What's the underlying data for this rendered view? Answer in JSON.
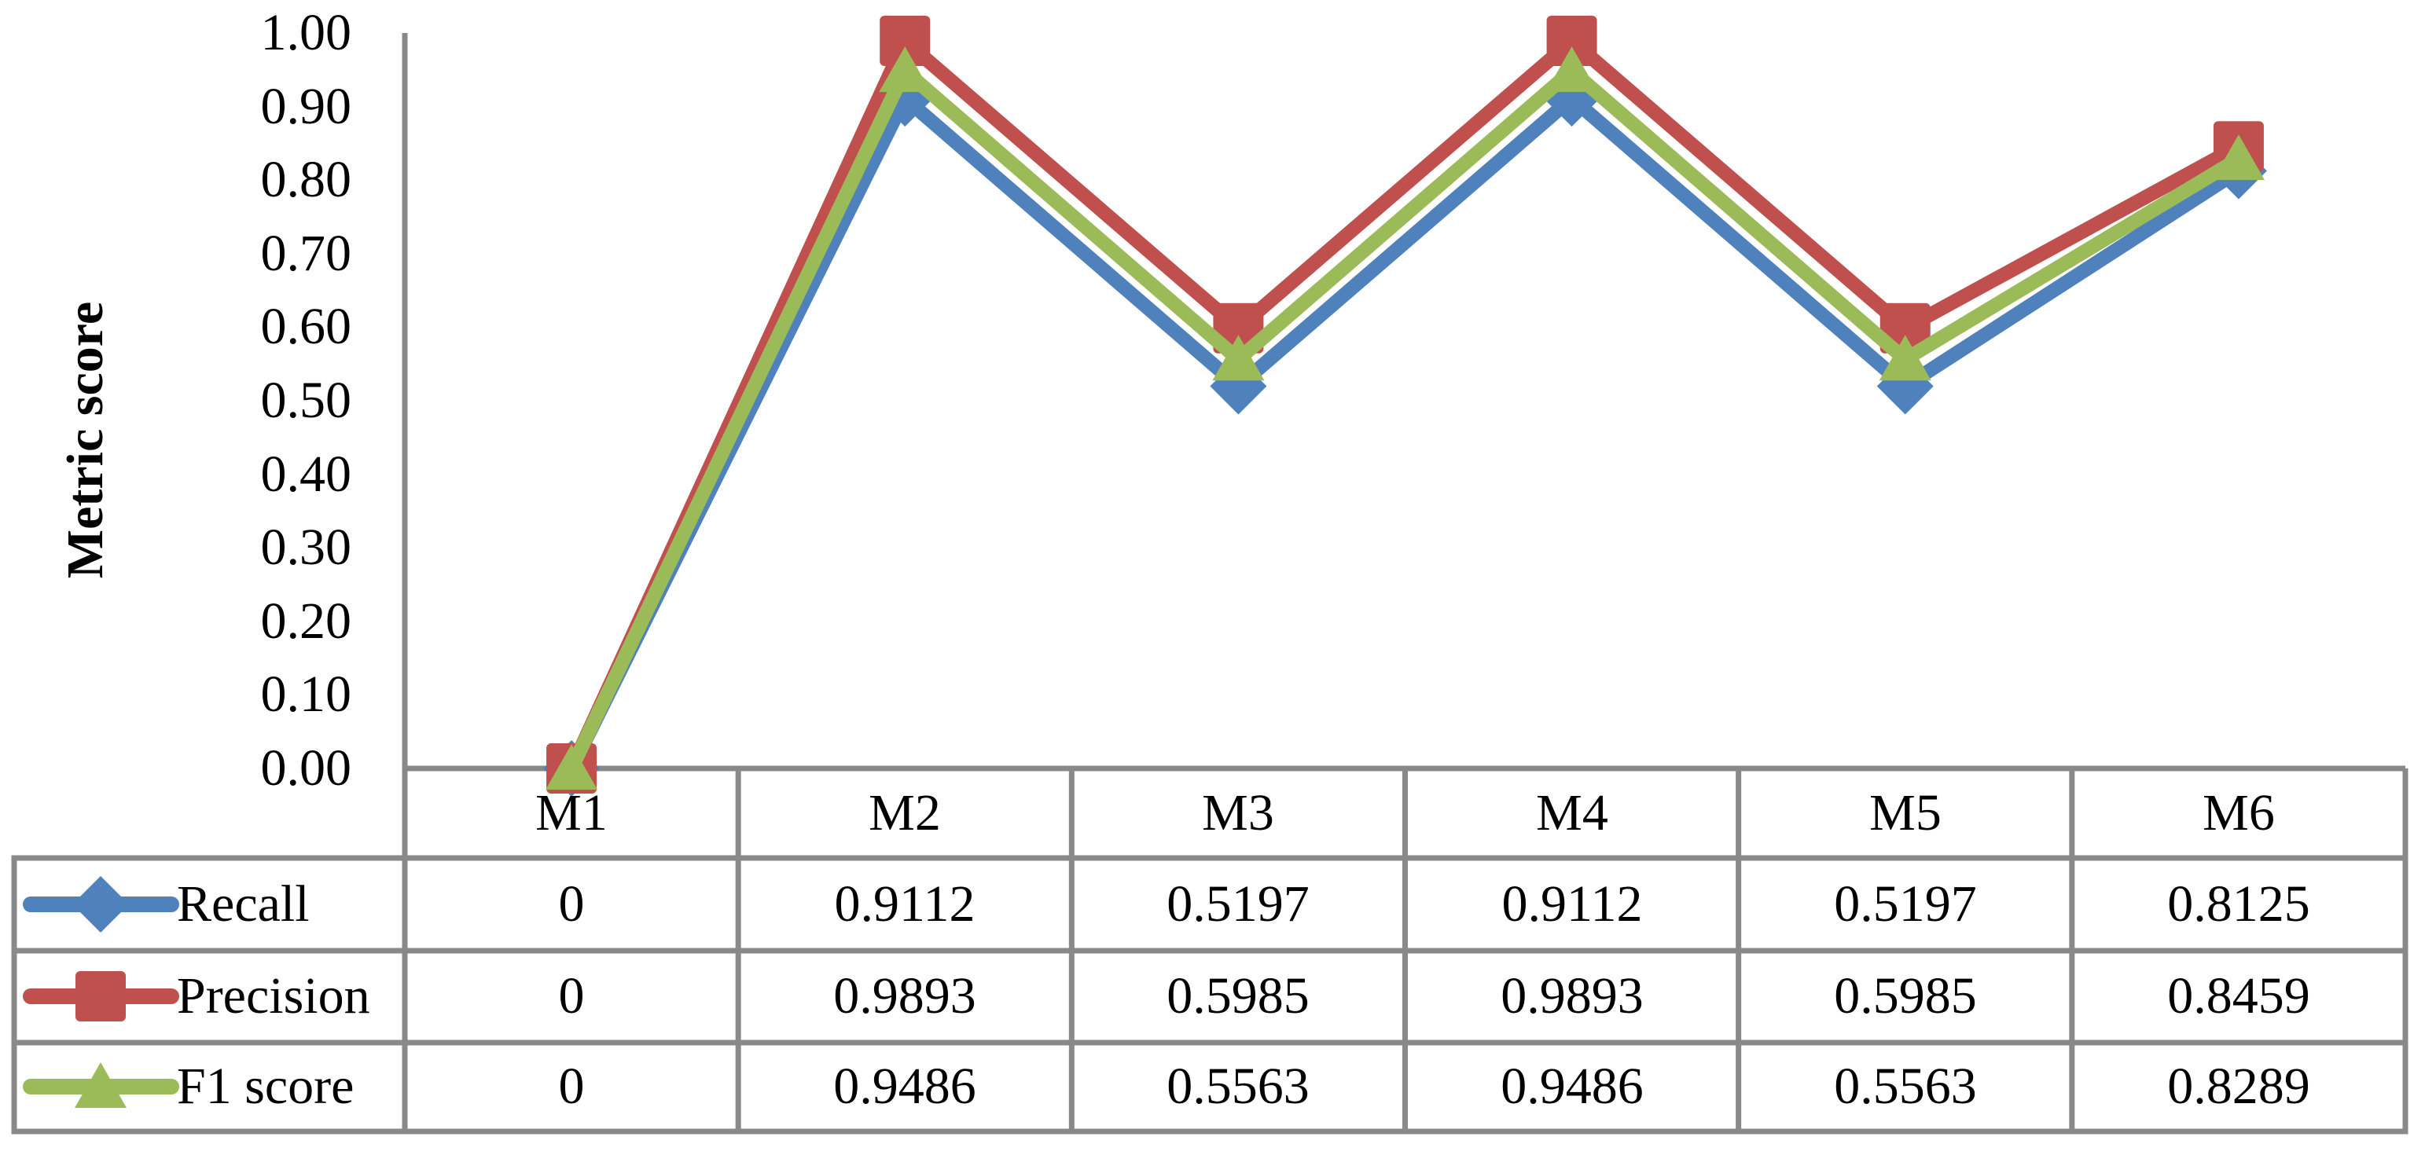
{
  "chart_data": {
    "type": "line",
    "title": "",
    "xlabel": "",
    "ylabel": "Metric score",
    "ylim": [
      0,
      1
    ],
    "ytick_step": 0.1,
    "y_ticks": [
      "1.00",
      "0.90",
      "0.80",
      "0.70",
      "0.60",
      "0.50",
      "0.40",
      "0.30",
      "0.20",
      "0.10",
      "0.00"
    ],
    "grid": "off",
    "legend_position": "data-table-left-column",
    "categories": [
      "M1",
      "M2",
      "M3",
      "M4",
      "M5",
      "M6"
    ],
    "series": [
      {
        "name": "Recall",
        "marker": "diamond",
        "color": "#4F81BD",
        "values": [
          0,
          0.9112,
          0.5197,
          0.9112,
          0.5197,
          0.8125
        ],
        "labels": [
          "0",
          "0.9112",
          "0.5197",
          "0.9112",
          "0.5197",
          "0.8125"
        ]
      },
      {
        "name": "Precision",
        "marker": "square",
        "color": "#C0504D",
        "values": [
          0,
          0.9893,
          0.5985,
          0.9893,
          0.5985,
          0.8459
        ],
        "labels": [
          "0",
          "0.9893",
          "0.5985",
          "0.9893",
          "0.5985",
          "0.8459"
        ]
      },
      {
        "name": "F1 score",
        "marker": "triangle",
        "color": "#9BBB59",
        "values": [
          0,
          0.9486,
          0.5563,
          0.9486,
          0.5563,
          0.8289
        ],
        "labels": [
          "0",
          "0.9486",
          "0.5563",
          "0.9486",
          "0.5563",
          "0.8289"
        ]
      }
    ],
    "border_color": "#898989"
  }
}
